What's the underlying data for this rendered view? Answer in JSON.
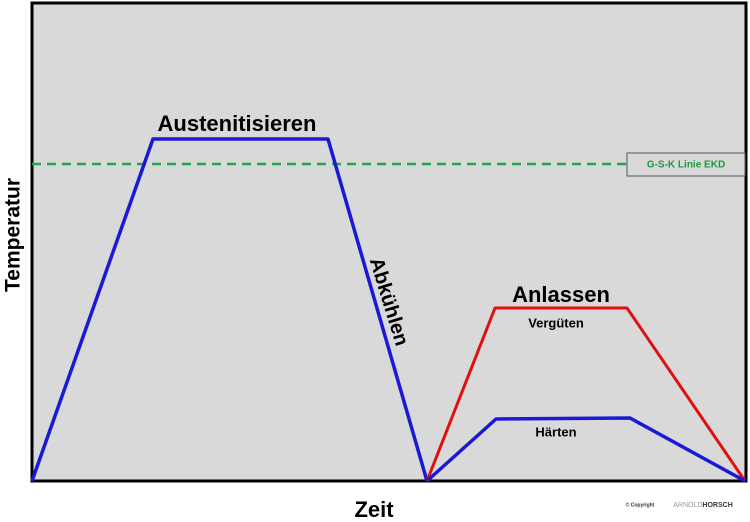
{
  "axes": {
    "y_label": "Temperatur",
    "x_label": "Zeit"
  },
  "phases": {
    "austenitize": "Austenitisieren",
    "cooling": "Abkühlen",
    "tempering": "Anlassen",
    "quench_temper": "Vergüten",
    "harden": "Härten"
  },
  "reference_line": {
    "label": "G-S-K Linie EKD"
  },
  "footer": {
    "copyright": "© Copyright",
    "logo_light": "ARNOLD",
    "logo_bold": "HORSCH"
  }
}
